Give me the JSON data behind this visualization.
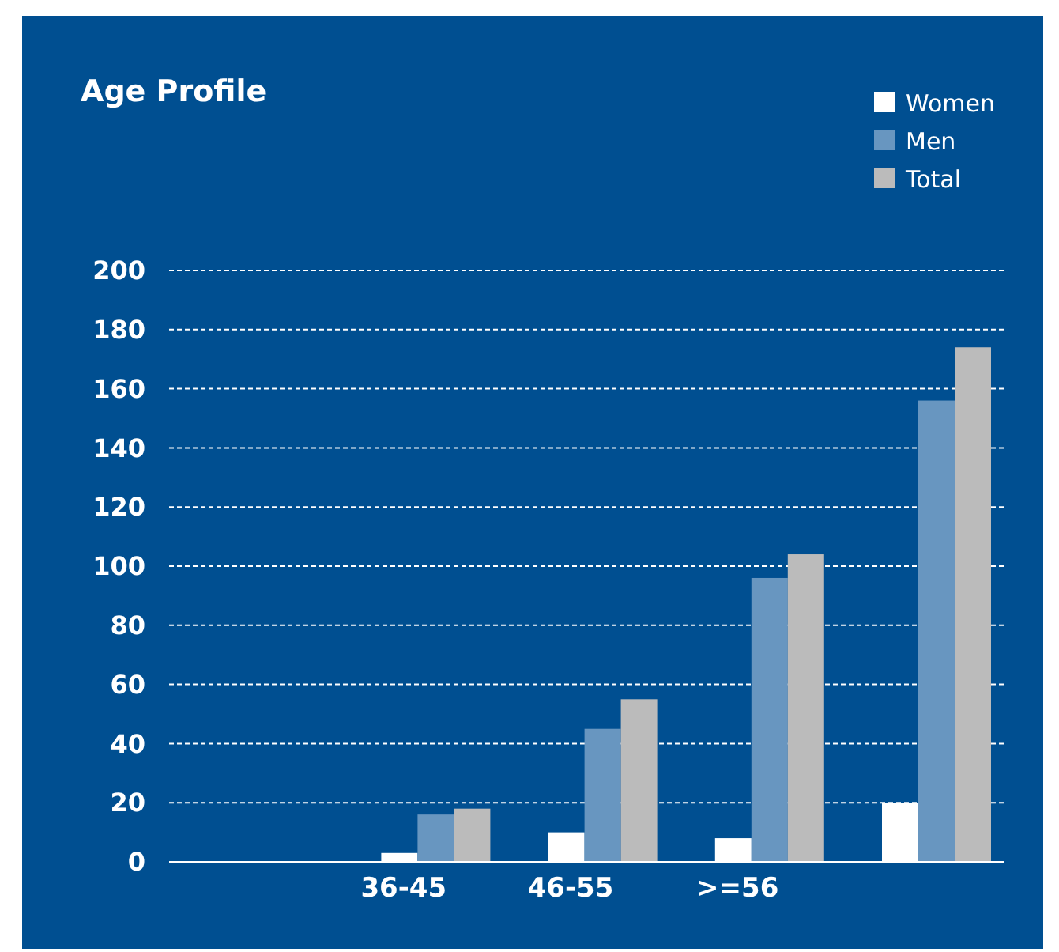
{
  "chart_data": {
    "type": "bar",
    "title": "Age Profile",
    "categories": [
      null,
      "36-45",
      "46-55",
      ">=56",
      null
    ],
    "series": [
      {
        "name": "Women",
        "color": "#ffffff",
        "values": [
          null,
          3,
          10,
          8,
          20
        ]
      },
      {
        "name": "Men",
        "color": "#6896c0",
        "values": [
          null,
          16,
          45,
          96,
          156
        ]
      },
      {
        "name": "Total",
        "color": "#bbbbbb",
        "values": [
          null,
          18,
          55,
          104,
          174
        ]
      }
    ],
    "ylim": [
      0,
      200
    ],
    "yticks": [
      0,
      20,
      40,
      60,
      80,
      100,
      120,
      140,
      160,
      180,
      200
    ],
    "grid": "y",
    "legend": "top right"
  }
}
